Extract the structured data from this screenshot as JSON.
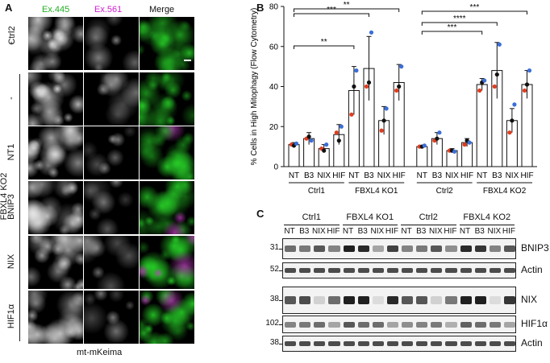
{
  "panels": {
    "a": "A",
    "b": "B",
    "c": "C"
  },
  "panel_a": {
    "channels": [
      {
        "label": "Ex.445",
        "color": "#22b022"
      },
      {
        "label": "Ex.561",
        "color": "#d020d0"
      },
      {
        "label": "Merge",
        "color": "#111111"
      }
    ],
    "group_labels": {
      "ctrl": "Ctrl2",
      "ko": "FBXL4 KO2"
    },
    "rows": [
      "-",
      "-",
      "NT1",
      "BNIP3",
      "NIX",
      "HIF1α"
    ],
    "footer": "mt-mKeima"
  },
  "chart_data": {
    "type": "bar",
    "ylabel": "% Cells in High Mitophagy (Flow Cytometry)",
    "ylim": [
      0,
      80
    ],
    "yticks": [
      "0",
      "20",
      "40",
      "60",
      "80"
    ],
    "categories": [
      "NT",
      "B3",
      "NIX",
      "HIF",
      "NT",
      "B3",
      "NIX",
      "HIF",
      "NT",
      "B3",
      "NIX",
      "HIF",
      "NT",
      "B3",
      "NIX",
      "HIF"
    ],
    "groups": [
      "Ctrl1",
      "FBXL4 KO1",
      "Ctrl2",
      "FBXL4 KO2"
    ],
    "values": [
      11,
      14,
      9,
      16,
      38,
      49,
      23,
      42,
      10,
      14,
      8,
      12,
      41,
      48,
      23,
      41
    ],
    "errors": [
      1,
      3,
      2,
      5,
      12,
      16,
      7,
      9,
      0.5,
      3,
      1,
      2,
      3,
      14,
      6,
      7
    ],
    "points": [
      [
        11,
        10.5,
        11.5
      ],
      [
        14,
        15,
        13
      ],
      [
        9,
        8,
        11
      ],
      [
        17,
        13,
        20
      ],
      [
        26,
        40,
        48
      ],
      [
        40,
        42,
        67
      ],
      [
        18,
        23,
        29
      ],
      [
        38,
        40,
        50
      ],
      [
        10,
        10,
        10.5
      ],
      [
        13,
        14,
        17
      ],
      [
        8,
        8,
        7.5
      ],
      [
        11,
        13,
        12
      ],
      [
        38,
        42,
        43
      ],
      [
        40,
        46,
        61
      ],
      [
        17,
        23,
        31
      ],
      [
        38,
        41,
        48
      ]
    ],
    "point_colors": [
      "#e03c1e",
      "#111111",
      "#3a6fd8"
    ],
    "significance": [
      {
        "from": 0,
        "to": 4,
        "label": "**"
      },
      {
        "from": 0,
        "to": 5,
        "label": "***"
      },
      {
        "from": 0,
        "to": 7,
        "label": "**"
      },
      {
        "from": 8,
        "to": 12,
        "label": "***"
      },
      {
        "from": 8,
        "to": 13,
        "label": "****"
      },
      {
        "from": 8,
        "to": 15,
        "label": "***"
      }
    ]
  },
  "panel_c": {
    "groups": [
      "Ctrl1",
      "FBXL4 KO1",
      "Ctrl2",
      "FBXL4 KO2"
    ],
    "lanes": [
      "NT",
      "B3",
      "NIX",
      "HIF",
      "NT",
      "B3",
      "NIX",
      "HIF",
      "NT",
      "B3",
      "NIX",
      "HIF",
      "NT",
      "B3",
      "NIX",
      "HIF"
    ],
    "blots": [
      {
        "name": "BNIP3",
        "marker": "31"
      },
      {
        "name": "Actin",
        "marker": "52"
      },
      {
        "name": "NIX",
        "marker": "38"
      },
      {
        "name": "HIF1α",
        "marker": "102"
      },
      {
        "name": "Actin",
        "marker": "38"
      }
    ]
  }
}
